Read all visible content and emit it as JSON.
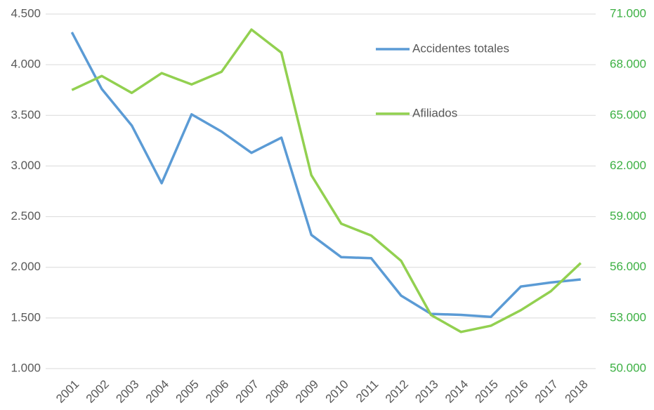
{
  "chart_data": {
    "type": "line",
    "categories": [
      "2001",
      "2002",
      "2003",
      "2004",
      "2005",
      "2006",
      "2007",
      "2008",
      "2009",
      "2010",
      "2011",
      "2012",
      "2013",
      "2014",
      "2015",
      "2016",
      "2017",
      "2018"
    ],
    "series": [
      {
        "name": "Accidentes totales",
        "color": "#5b9bd5",
        "axis": "y",
        "values": [
          4320,
          3760,
          3400,
          2830,
          3510,
          3340,
          3130,
          3280,
          2320,
          2100,
          2090,
          1720,
          1540,
          1530,
          1510,
          1810,
          1850,
          1880
        ]
      },
      {
        "name": "Afiliados",
        "color": "#92d050",
        "axis": "y2",
        "values": [
          66500,
          67330,
          66330,
          67500,
          66830,
          67580,
          70080,
          68710,
          61460,
          58580,
          57880,
          56380,
          53170,
          52170,
          52540,
          53460,
          54580,
          56250
        ]
      }
    ],
    "ylim": [
      1000,
      4500
    ],
    "yticks": [
      {
        "value": 1000,
        "label": "1.000"
      },
      {
        "value": 1500,
        "label": "1.500"
      },
      {
        "value": 2000,
        "label": "2.000"
      },
      {
        "value": 2500,
        "label": "2.500"
      },
      {
        "value": 3000,
        "label": "3.000"
      },
      {
        "value": 3500,
        "label": "3.500"
      },
      {
        "value": 4000,
        "label": "4.000"
      },
      {
        "value": 4500,
        "label": "4.500"
      }
    ],
    "y2lim": [
      50000,
      71000
    ],
    "y2ticks": [
      {
        "value": 50000,
        "label": "50.000"
      },
      {
        "value": 53000,
        "label": "53.000"
      },
      {
        "value": 56000,
        "label": "56.000"
      },
      {
        "value": 59000,
        "label": "59.000"
      },
      {
        "value": 62000,
        "label": "62.000"
      },
      {
        "value": 65000,
        "label": "65.000"
      },
      {
        "value": 68000,
        "label": "68.000"
      },
      {
        "value": 71000,
        "label": "71.000"
      }
    ],
    "grid": true,
    "legend": "upper right"
  }
}
